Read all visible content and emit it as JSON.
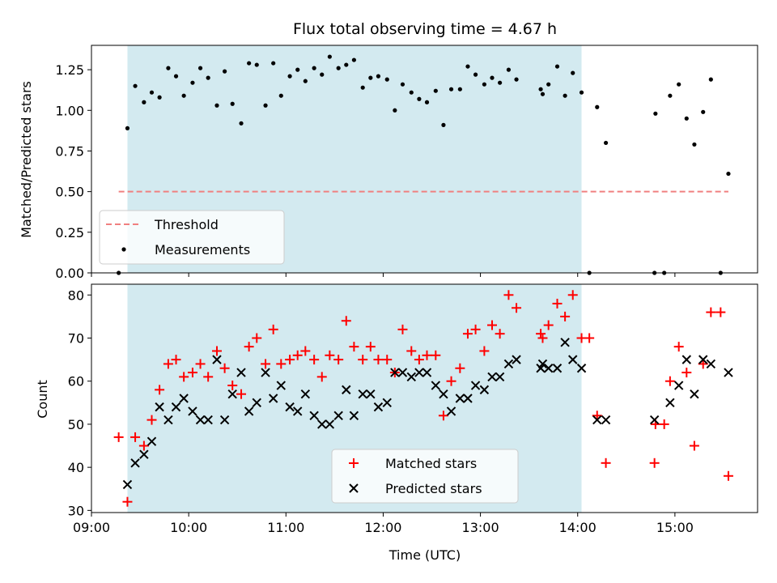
{
  "chart_data": [
    {
      "type": "scatter",
      "title": "Flux total observing time = 4.67 h",
      "xlabel": "",
      "ylabel": "Matched/Predicted stars",
      "ylim": [
        0,
        1.4
      ],
      "xlim_hours": [
        9.0,
        15.85
      ],
      "y_ticks": [
        {
          "v": 0.0,
          "label": "0.00"
        },
        {
          "v": 0.25,
          "label": "0.25"
        },
        {
          "v": 0.5,
          "label": "0.50"
        },
        {
          "v": 0.75,
          "label": "0.75"
        },
        {
          "v": 1.0,
          "label": "1.00"
        },
        {
          "v": 1.25,
          "label": "1.25"
        }
      ],
      "shaded_span_hours": [
        9.37,
        14.04
      ],
      "shade_color": "#d3eaf0",
      "threshold": {
        "name": "Threshold",
        "y": 0.5,
        "x_hours": [
          9.28,
          15.55
        ],
        "color": "#f08080"
      },
      "legend": {
        "position": "lower-left"
      },
      "series": [
        {
          "name": "Measurements",
          "color": "#000000",
          "marker": "dot",
          "x": [
            9.28,
            9.37,
            9.45,
            9.54,
            9.62,
            9.7,
            9.79,
            9.87,
            9.95,
            10.04,
            10.12,
            10.2,
            10.29,
            10.37,
            10.45,
            10.54,
            10.62,
            10.7,
            10.79,
            10.87,
            10.95,
            11.04,
            11.12,
            11.2,
            11.29,
            11.37,
            11.45,
            11.54,
            11.62,
            11.7,
            11.79,
            11.87,
            11.95,
            12.04,
            12.12,
            12.2,
            12.29,
            12.37,
            12.45,
            12.54,
            12.62,
            12.7,
            12.79,
            12.87,
            12.95,
            13.04,
            13.12,
            13.2,
            13.29,
            13.37,
            13.62,
            13.64,
            13.7,
            13.79,
            13.87,
            13.95,
            14.04,
            14.12,
            14.2,
            14.29,
            14.79,
            14.8,
            14.89,
            14.95,
            15.04,
            15.12,
            15.2,
            15.29,
            15.37,
            15.47,
            15.55
          ],
          "y": [
            0.0,
            0.89,
            1.15,
            1.05,
            1.11,
            1.08,
            1.26,
            1.21,
            1.09,
            1.17,
            1.26,
            1.2,
            1.03,
            1.24,
            1.04,
            0.92,
            1.29,
            1.28,
            1.03,
            1.29,
            1.09,
            1.21,
            1.25,
            1.18,
            1.26,
            1.22,
            1.33,
            1.26,
            1.28,
            1.31,
            1.14,
            1.2,
            1.21,
            1.19,
            1.0,
            1.16,
            1.11,
            1.07,
            1.05,
            1.12,
            0.91,
            1.13,
            1.13,
            1.27,
            1.22,
            1.16,
            1.2,
            1.17,
            1.25,
            1.19,
            1.13,
            1.1,
            1.16,
            1.27,
            1.09,
            1.23,
            1.11,
            0.0,
            1.02,
            0.8,
            0.0,
            0.98,
            0.0,
            1.09,
            1.16,
            0.95,
            0.79,
            0.99,
            1.19,
            0.0,
            0.61
          ]
        }
      ]
    },
    {
      "type": "scatter",
      "title": "",
      "xlabel": "Time (UTC)",
      "ylabel": "Count",
      "ylim": [
        29.5,
        82.5
      ],
      "xlim_hours": [
        9.0,
        15.85
      ],
      "y_ticks": [
        {
          "v": 30,
          "label": "30"
        },
        {
          "v": 40,
          "label": "40"
        },
        {
          "v": 50,
          "label": "50"
        },
        {
          "v": 60,
          "label": "60"
        },
        {
          "v": 70,
          "label": "70"
        },
        {
          "v": 80,
          "label": "80"
        }
      ],
      "x_ticks": [
        {
          "v": 9,
          "label": "09:00"
        },
        {
          "v": 10,
          "label": "10:00"
        },
        {
          "v": 11,
          "label": "11:00"
        },
        {
          "v": 12,
          "label": "12:00"
        },
        {
          "v": 13,
          "label": "13:00"
        },
        {
          "v": 14,
          "label": "14:00"
        },
        {
          "v": 15,
          "label": "15:00"
        }
      ],
      "shaded_span_hours": [
        9.37,
        14.04
      ],
      "shade_color": "#d3eaf0",
      "legend": {
        "position": "lower-center"
      },
      "series": [
        {
          "name": "Matched stars",
          "color": "#ff0000",
          "marker": "plus",
          "x": [
            9.28,
            9.37,
            9.45,
            9.54,
            9.62,
            9.7,
            9.79,
            9.87,
            9.95,
            10.04,
            10.12,
            10.2,
            10.29,
            10.37,
            10.45,
            10.54,
            10.62,
            10.7,
            10.79,
            10.87,
            10.95,
            11.04,
            11.12,
            11.2,
            11.29,
            11.37,
            11.45,
            11.54,
            11.62,
            11.7,
            11.79,
            11.87,
            11.95,
            12.04,
            12.12,
            12.2,
            12.29,
            12.37,
            12.45,
            12.54,
            12.62,
            12.7,
            12.79,
            12.87,
            12.95,
            13.04,
            13.12,
            13.2,
            13.29,
            13.37,
            13.62,
            13.64,
            13.7,
            13.79,
            13.87,
            13.95,
            14.04,
            14.12,
            14.2,
            14.29,
            14.79,
            14.8,
            14.89,
            14.95,
            15.04,
            15.12,
            15.2,
            15.29,
            15.37,
            15.47,
            15.55
          ],
          "y": [
            47,
            32,
            47,
            45,
            51,
            58,
            64,
            65,
            61,
            62,
            64,
            61,
            67,
            63,
            59,
            57,
            68,
            70,
            64,
            72,
            64,
            65,
            66,
            67,
            65,
            61,
            66,
            65,
            74,
            68,
            65,
            68,
            65,
            65,
            62,
            72,
            67,
            65,
            66,
            66,
            52,
            60,
            63,
            71,
            72,
            67,
            73,
            71,
            80,
            77,
            71,
            70,
            73,
            78,
            75,
            80,
            70,
            70,
            52,
            41,
            41,
            50,
            50,
            60,
            68,
            62,
            45,
            64,
            76,
            76,
            38
          ]
        },
        {
          "name": "Predicted stars",
          "color": "#000000",
          "marker": "x",
          "x": [
            9.37,
            9.45,
            9.54,
            9.62,
            9.7,
            9.79,
            9.87,
            9.95,
            10.04,
            10.12,
            10.2,
            10.29,
            10.37,
            10.45,
            10.54,
            10.62,
            10.7,
            10.79,
            10.87,
            10.95,
            11.04,
            11.12,
            11.2,
            11.29,
            11.37,
            11.45,
            11.54,
            11.62,
            11.7,
            11.79,
            11.87,
            11.95,
            12.04,
            12.12,
            12.2,
            12.29,
            12.37,
            12.45,
            12.54,
            12.62,
            12.7,
            12.79,
            12.87,
            12.95,
            13.04,
            13.12,
            13.2,
            13.29,
            13.37,
            13.62,
            13.64,
            13.7,
            13.79,
            13.87,
            13.95,
            14.04,
            14.2,
            14.29,
            14.79,
            14.95,
            15.04,
            15.12,
            15.2,
            15.29,
            15.37,
            15.55
          ],
          "y": [
            36,
            41,
            43,
            46,
            54,
            51,
            54,
            56,
            53,
            51,
            51,
            65,
            51,
            57,
            62,
            53,
            55,
            62,
            56,
            59,
            54,
            53,
            57,
            52,
            50,
            50,
            52,
            58,
            52,
            57,
            57,
            54,
            55,
            62,
            62,
            61,
            62,
            62,
            59,
            57,
            53,
            56,
            56,
            59,
            58,
            61,
            61,
            64,
            65,
            63,
            64,
            63,
            63,
            69,
            65,
            63,
            51,
            51,
            51,
            55,
            59,
            65,
            57,
            65,
            64,
            62
          ]
        }
      ]
    }
  ]
}
